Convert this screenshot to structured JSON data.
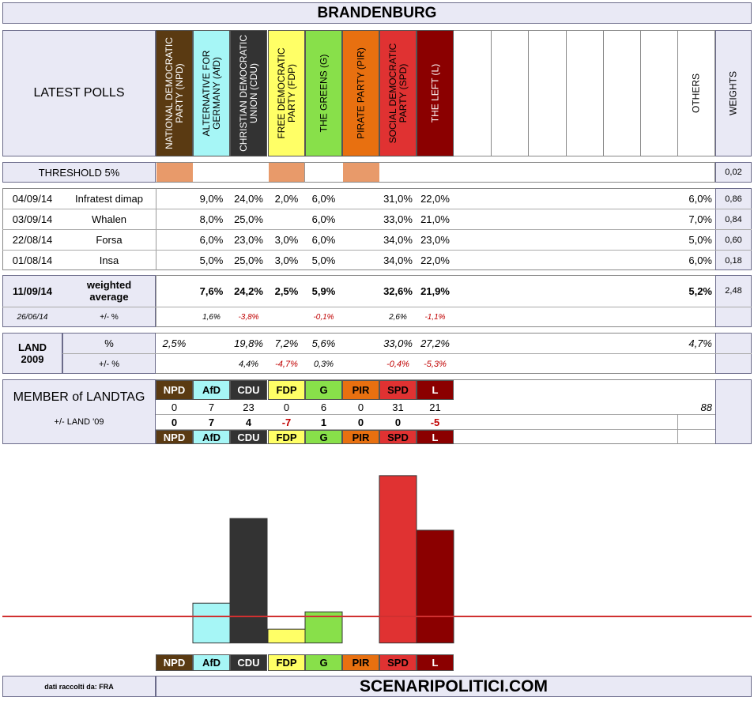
{
  "title": "BRANDENBURG",
  "latest_polls_label": "LATEST POLLS",
  "others_label": "OTHERS",
  "weights_label": "WEIGHTS",
  "parties": [
    {
      "key": "npd",
      "name": "NATIONAL DEMOCRATIC PARTY (NPD)",
      "abbr": "NPD",
      "color": "#5a3a12",
      "text": "#ffffff"
    },
    {
      "key": "afd",
      "name": "ALTERNATIVE FOR GERMANY (AfD)",
      "abbr": "AfD",
      "color": "#a6f6f6",
      "text": "#000000"
    },
    {
      "key": "cdu",
      "name": "CHRISTIAN DEMOCRATIC UNION (CDU)",
      "abbr": "CDU",
      "color": "#333333",
      "text": "#ffffff"
    },
    {
      "key": "fdp",
      "name": "FREE DEMOCRATIC PARTY (FDP)",
      "abbr": "FDP",
      "color": "#ffff66",
      "text": "#000000"
    },
    {
      "key": "g",
      "name": "THE GREENS (G)",
      "abbr": "G",
      "color": "#88e04a",
      "text": "#000000"
    },
    {
      "key": "pir",
      "name": "PIRATE PARTY (PIR)",
      "abbr": "PIR",
      "color": "#e87010",
      "text": "#000000"
    },
    {
      "key": "spd",
      "name": "SOCIAL DEMOCRATIC PARTY (SPD)",
      "abbr": "SPD",
      "color": "#e03232",
      "text": "#000000"
    },
    {
      "key": "l",
      "name": "THE LEFT (L)",
      "abbr": "L",
      "color": "#8b0000",
      "text": "#ffffff"
    }
  ],
  "threshold": {
    "label": "THRESHOLD 5%",
    "weight": "0,02",
    "below_color": "#e89a6a"
  },
  "polls": [
    {
      "date": "04/09/14",
      "institute": "Infratest dimap",
      "values": [
        "",
        "9,0%",
        "24,0%",
        "2,0%",
        "6,0%",
        "",
        "31,0%",
        "22,0%"
      ],
      "others": "6,0%",
      "weight": "0,86"
    },
    {
      "date": "03/09/14",
      "institute": "Whalen",
      "values": [
        "",
        "8,0%",
        "25,0%",
        "",
        "6,0%",
        "",
        "33,0%",
        "21,0%"
      ],
      "others": "7,0%",
      "weight": "0,84"
    },
    {
      "date": "22/08/14",
      "institute": "Forsa",
      "values": [
        "",
        "6,0%",
        "23,0%",
        "3,0%",
        "6,0%",
        "",
        "34,0%",
        "23,0%"
      ],
      "others": "5,0%",
      "weight": "0,60"
    },
    {
      "date": "01/08/14",
      "institute": "Insa",
      "values": [
        "",
        "5,0%",
        "25,0%",
        "3,0%",
        "5,0%",
        "",
        "34,0%",
        "22,0%"
      ],
      "others": "6,0%",
      "weight": "0,18"
    }
  ],
  "weighted": {
    "date": "11/09/14",
    "label": "weighted average",
    "values": [
      "",
      "7,6%",
      "24,2%",
      "2,5%",
      "5,9%",
      "",
      "32,6%",
      "21,9%"
    ],
    "others": "5,2%",
    "weight": "2,48",
    "prev_date": "26/06/14",
    "diff_label": "+/- %",
    "diffs": [
      "",
      "1,6%",
      "-3,8%",
      "",
      "-0,1%",
      "",
      "2,6%",
      "-1,1%"
    ],
    "diff_neg": [
      false,
      false,
      true,
      false,
      true,
      false,
      false,
      true
    ]
  },
  "land2009": {
    "label": "LAND 2009",
    "pct_label": "%",
    "diff_label": "+/- %",
    "values": [
      "2,5%",
      "",
      "19,8%",
      "7,2%",
      "5,6%",
      "",
      "33,0%",
      "27,2%"
    ],
    "others": "4,7%",
    "diffs": [
      "",
      "",
      "4,4%",
      "-4,7%",
      "0,3%",
      "",
      "-0,4%",
      "-5,3%"
    ],
    "diff_neg": [
      false,
      false,
      false,
      true,
      false,
      false,
      true,
      true
    ]
  },
  "landtag": {
    "label": "MEMBER of LANDTAG",
    "diff_label": "+/- LAND '09",
    "seats": [
      "0",
      "7",
      "23",
      "0",
      "6",
      "0",
      "31",
      "21"
    ],
    "total": "88",
    "diffs": [
      "0",
      "7",
      "4",
      "-7",
      "1",
      "0",
      "0",
      "-5"
    ],
    "diff_neg": [
      false,
      false,
      false,
      true,
      false,
      false,
      false,
      true
    ]
  },
  "chart_data": {
    "type": "bar",
    "categories": [
      "NPD",
      "AfD",
      "CDU",
      "FDP",
      "G",
      "PIR",
      "SPD",
      "L"
    ],
    "values": [
      0,
      7.6,
      24.2,
      2.5,
      5.9,
      0,
      32.6,
      21.9
    ],
    "threshold": 5,
    "ylim": [
      0,
      33
    ]
  },
  "footer": {
    "source": "dati raccolti da: FRA",
    "site": "SCENARIPOLITICI.COM"
  }
}
